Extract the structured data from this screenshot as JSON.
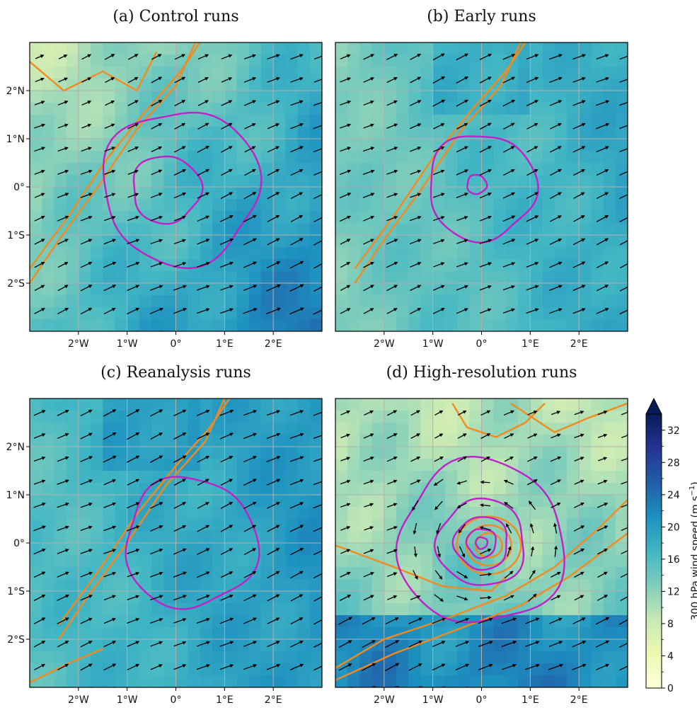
{
  "figure": {
    "colorbar": {
      "label": "300 hPa wind speed (m s",
      "label_sup": "−1",
      "label_close": ")",
      "ticks": [
        "0",
        "4",
        "8",
        "12",
        "16",
        "20",
        "24",
        "28",
        "32"
      ],
      "range": [
        0,
        34
      ],
      "extend": "max",
      "colormap": [
        "#ffffd9",
        "#edf8b1",
        "#c7e9b4",
        "#7fcdbb",
        "#41b6c4",
        "#1d91c0",
        "#225ea8",
        "#253494",
        "#081d58"
      ]
    },
    "colors": {
      "magenta_contour": "#c21fc9",
      "orange_contour": "#f28a1e",
      "arrows": "#000000",
      "grid": "#b0b0b0"
    }
  },
  "chart_data": [
    {
      "type": "heatmap",
      "title": "(a) Control runs",
      "x_ticks": [
        "2°W",
        "1°W",
        "0°",
        "1°E",
        "2°E"
      ],
      "y_ticks": [
        "2°N",
        "1°N",
        "0°",
        "1°S",
        "2°S"
      ],
      "xlim": [
        -3,
        3
      ],
      "ylim": [
        -3,
        3
      ],
      "grid": true,
      "background_field": {
        "min_speed": 6,
        "max_speed": 26,
        "slow_region": "north-west",
        "fast_region": "south-east"
      },
      "magenta_contours": [
        {
          "cx": 0.1,
          "cy": 0.0,
          "r": 1.6
        },
        {
          "cx": -0.2,
          "cy": -0.05,
          "r": 0.7
        }
      ],
      "orange_contours": "north-west band",
      "wind_vectors": {
        "direction": "south-west to north-east",
        "mean_speed_ms": 20
      }
    },
    {
      "type": "heatmap",
      "title": "(b) Early runs",
      "x_ticks": [
        "2°W",
        "1°W",
        "0°",
        "1°E",
        "2°E"
      ],
      "y_ticks": [],
      "xlim": [
        -3,
        3
      ],
      "ylim": [
        -3,
        3
      ],
      "grid": true,
      "background_field": {
        "min_speed": 10,
        "max_speed": 25,
        "slow_region": "west",
        "fast_region": "north-centre"
      },
      "magenta_contours": [
        {
          "cx": 0.0,
          "cy": 0.0,
          "r": 1.1
        },
        {
          "cx": -0.1,
          "cy": 0.05,
          "r": 0.2
        }
      ],
      "orange_contours": "north-west band",
      "wind_vectors": {
        "direction": "south-west to north-east",
        "mean_speed_ms": 20
      }
    },
    {
      "type": "heatmap",
      "title": "(c) Reanalysis runs",
      "x_ticks": [
        "2°W",
        "1°W",
        "0°",
        "1°E",
        "2°E"
      ],
      "y_ticks": [
        "2°N",
        "1°N",
        "0°",
        "1°S",
        "2°S"
      ],
      "xlim": [
        -3,
        3
      ],
      "ylim": [
        -3,
        3
      ],
      "grid": true,
      "background_field": {
        "min_speed": 12,
        "max_speed": 27,
        "slow_region": "west",
        "fast_region": "north-centre"
      },
      "magenta_contours": [
        {
          "cx": 0.3,
          "cy": 0.0,
          "r": 1.35
        }
      ],
      "orange_contours": "north-west band",
      "wind_vectors": {
        "direction": "south-west to north-east",
        "mean_speed_ms": 21
      }
    },
    {
      "type": "heatmap",
      "title": "(d) High-resolution runs",
      "x_ticks": [
        "2°W",
        "1°W",
        "0°",
        "1°E",
        "2°E"
      ],
      "y_ticks": [],
      "xlim": [
        -3,
        3
      ],
      "ylim": [
        -3,
        3
      ],
      "grid": true,
      "background_field": {
        "min_speed": 3,
        "max_speed": 27,
        "slow_region": "north-west",
        "fast_region": "south-east"
      },
      "magenta_contours": [
        {
          "cx": 0.0,
          "cy": 0.0,
          "r": 1.7
        },
        {
          "cx": 0.0,
          "cy": 0.0,
          "r": 0.9
        },
        {
          "cx": 0.0,
          "cy": 0.0,
          "r": 0.55
        },
        {
          "cx": 0.0,
          "cy": 0.0,
          "r": 0.3
        },
        {
          "cx": 0.0,
          "cy": 0.0,
          "r": 0.12
        }
      ],
      "orange_contours": "central vortex and south-east band",
      "wind_vectors": {
        "direction": "cyclonic around centre, south-west to north-east in south",
        "mean_speed_ms": 16
      }
    }
  ]
}
